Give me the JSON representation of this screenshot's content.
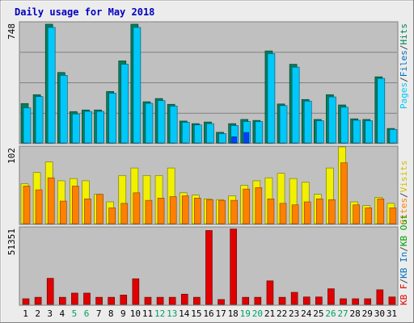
{
  "chart_data": [
    {
      "type": "bar",
      "title": "Daily usage for May 2018",
      "panel": "top",
      "categories": [
        "1",
        "2",
        "3",
        "4",
        "5",
        "6",
        "7",
        "8",
        "9",
        "10",
        "11",
        "12",
        "13",
        "14",
        "15",
        "16",
        "17",
        "18",
        "19",
        "20",
        "21",
        "22",
        "23",
        "24",
        "25",
        "26",
        "27",
        "28",
        "29",
        "30",
        "31"
      ],
      "y_tick_label": "748",
      "ylim": [
        0,
        748
      ],
      "right_axis_labels": [
        "Pages",
        "Files",
        "Hits"
      ],
      "series": [
        {
          "name": "Hits",
          "color": "#00805c",
          "values": [
            245,
            300,
            738,
            438,
            195,
            205,
            205,
            320,
            510,
            738,
            256,
            276,
            240,
            136,
            120,
            130,
            66,
            120,
            146,
            140,
            572,
            242,
            489,
            270,
            146,
            300,
            236,
            150,
            146,
            411,
            90
          ]
        },
        {
          "name": "Files",
          "color": "#00c8f8",
          "values": [
            218,
            288,
            718,
            420,
            180,
            196,
            196,
            309,
            489,
            718,
            246,
            263,
            229,
            128,
            112,
            120,
            58,
            108,
            133,
            133,
            555,
            232,
            471,
            260,
            138,
            286,
            222,
            141,
            138,
            401,
            84
          ]
        },
        {
          "name": "Pages",
          "color": "#0040ff",
          "values": [
            0,
            0,
            0,
            0,
            0,
            0,
            0,
            0,
            0,
            0,
            0,
            0,
            0,
            0,
            0,
            0,
            0,
            38,
            65,
            0,
            0,
            0,
            0,
            0,
            0,
            0,
            0,
            0,
            0,
            0,
            0
          ]
        }
      ]
    },
    {
      "type": "bar",
      "panel": "middle",
      "categories": [
        "1",
        "2",
        "3",
        "4",
        "5",
        "6",
        "7",
        "8",
        "9",
        "10",
        "11",
        "12",
        "13",
        "14",
        "15",
        "16",
        "17",
        "18",
        "19",
        "20",
        "21",
        "22",
        "23",
        "24",
        "25",
        "26",
        "27",
        "28",
        "29",
        "30",
        "31"
      ],
      "y_tick_label": "102",
      "ylim": [
        0,
        102
      ],
      "right_axis_labels": [
        "Sites",
        "Visits"
      ],
      "series": [
        {
          "name": "Visits",
          "color": "#f0f000",
          "values": [
            53,
            68,
            82,
            57,
            60,
            57,
            39,
            29,
            64,
            74,
            64,
            64,
            74,
            41,
            38,
            33,
            32,
            37,
            51,
            57,
            61,
            67,
            60,
            55,
            39,
            74,
            102,
            29,
            24,
            35,
            27
          ]
        },
        {
          "name": "Sites",
          "color": "#ff8000",
          "values": [
            50,
            45,
            61,
            30,
            50,
            33,
            39,
            21,
            27,
            41,
            31,
            34,
            36,
            37,
            34,
            32,
            31,
            31,
            46,
            48,
            33,
            27,
            25,
            29,
            33,
            32,
            81,
            25,
            21,
            33,
            21
          ]
        }
      ]
    },
    {
      "type": "bar",
      "panel": "bottom",
      "categories": [
        "1",
        "2",
        "3",
        "4",
        "5",
        "6",
        "7",
        "8",
        "9",
        "10",
        "11",
        "12",
        "13",
        "14",
        "15",
        "16",
        "17",
        "18",
        "19",
        "20",
        "21",
        "22",
        "23",
        "24",
        "25",
        "26",
        "27",
        "28",
        "29",
        "30",
        "31"
      ],
      "y_tick_label": "51351",
      "ylim": [
        0,
        51351
      ],
      "right_axis_labels": [
        "KB F",
        "KB In",
        "KB Out"
      ],
      "series": [
        {
          "name": "KB F",
          "color": "#e00000",
          "values": [
            3800,
            4800,
            17500,
            4800,
            7600,
            7600,
            4800,
            4800,
            6300,
            17200,
            4800,
            4800,
            4800,
            6900,
            4800,
            49500,
            3300,
            50500,
            4800,
            4800,
            15800,
            4800,
            8100,
            5000,
            5000,
            10500,
            3800,
            3800,
            3800,
            9800,
            5000
          ]
        }
      ],
      "x_labels": [
        "1",
        "2",
        "3",
        "4",
        "5",
        "6",
        "7",
        "8",
        "9",
        "10",
        "11",
        "12",
        "13",
        "14",
        "15",
        "16",
        "17",
        "18",
        "19",
        "20",
        "21",
        "22",
        "23",
        "24",
        "25",
        "26",
        "27",
        "28",
        "29",
        "30",
        "31"
      ],
      "weekend_days": [
        "5",
        "6",
        "12",
        "13",
        "19",
        "20",
        "26",
        "27"
      ]
    }
  ],
  "colors": {
    "panel_bg": "#c0c0c0",
    "frame_bg": "#ececec",
    "title": "#0000c0",
    "weekday_label": "#000000",
    "weekend_label": "#00a060",
    "hits": "#00805c",
    "files": "#00c8f8",
    "pages": "#0040ff",
    "visits": "#f0f000",
    "sites": "#ff8000",
    "kbf": "#e00000",
    "kbin": "#0070c0",
    "kbout": "#00a000"
  }
}
